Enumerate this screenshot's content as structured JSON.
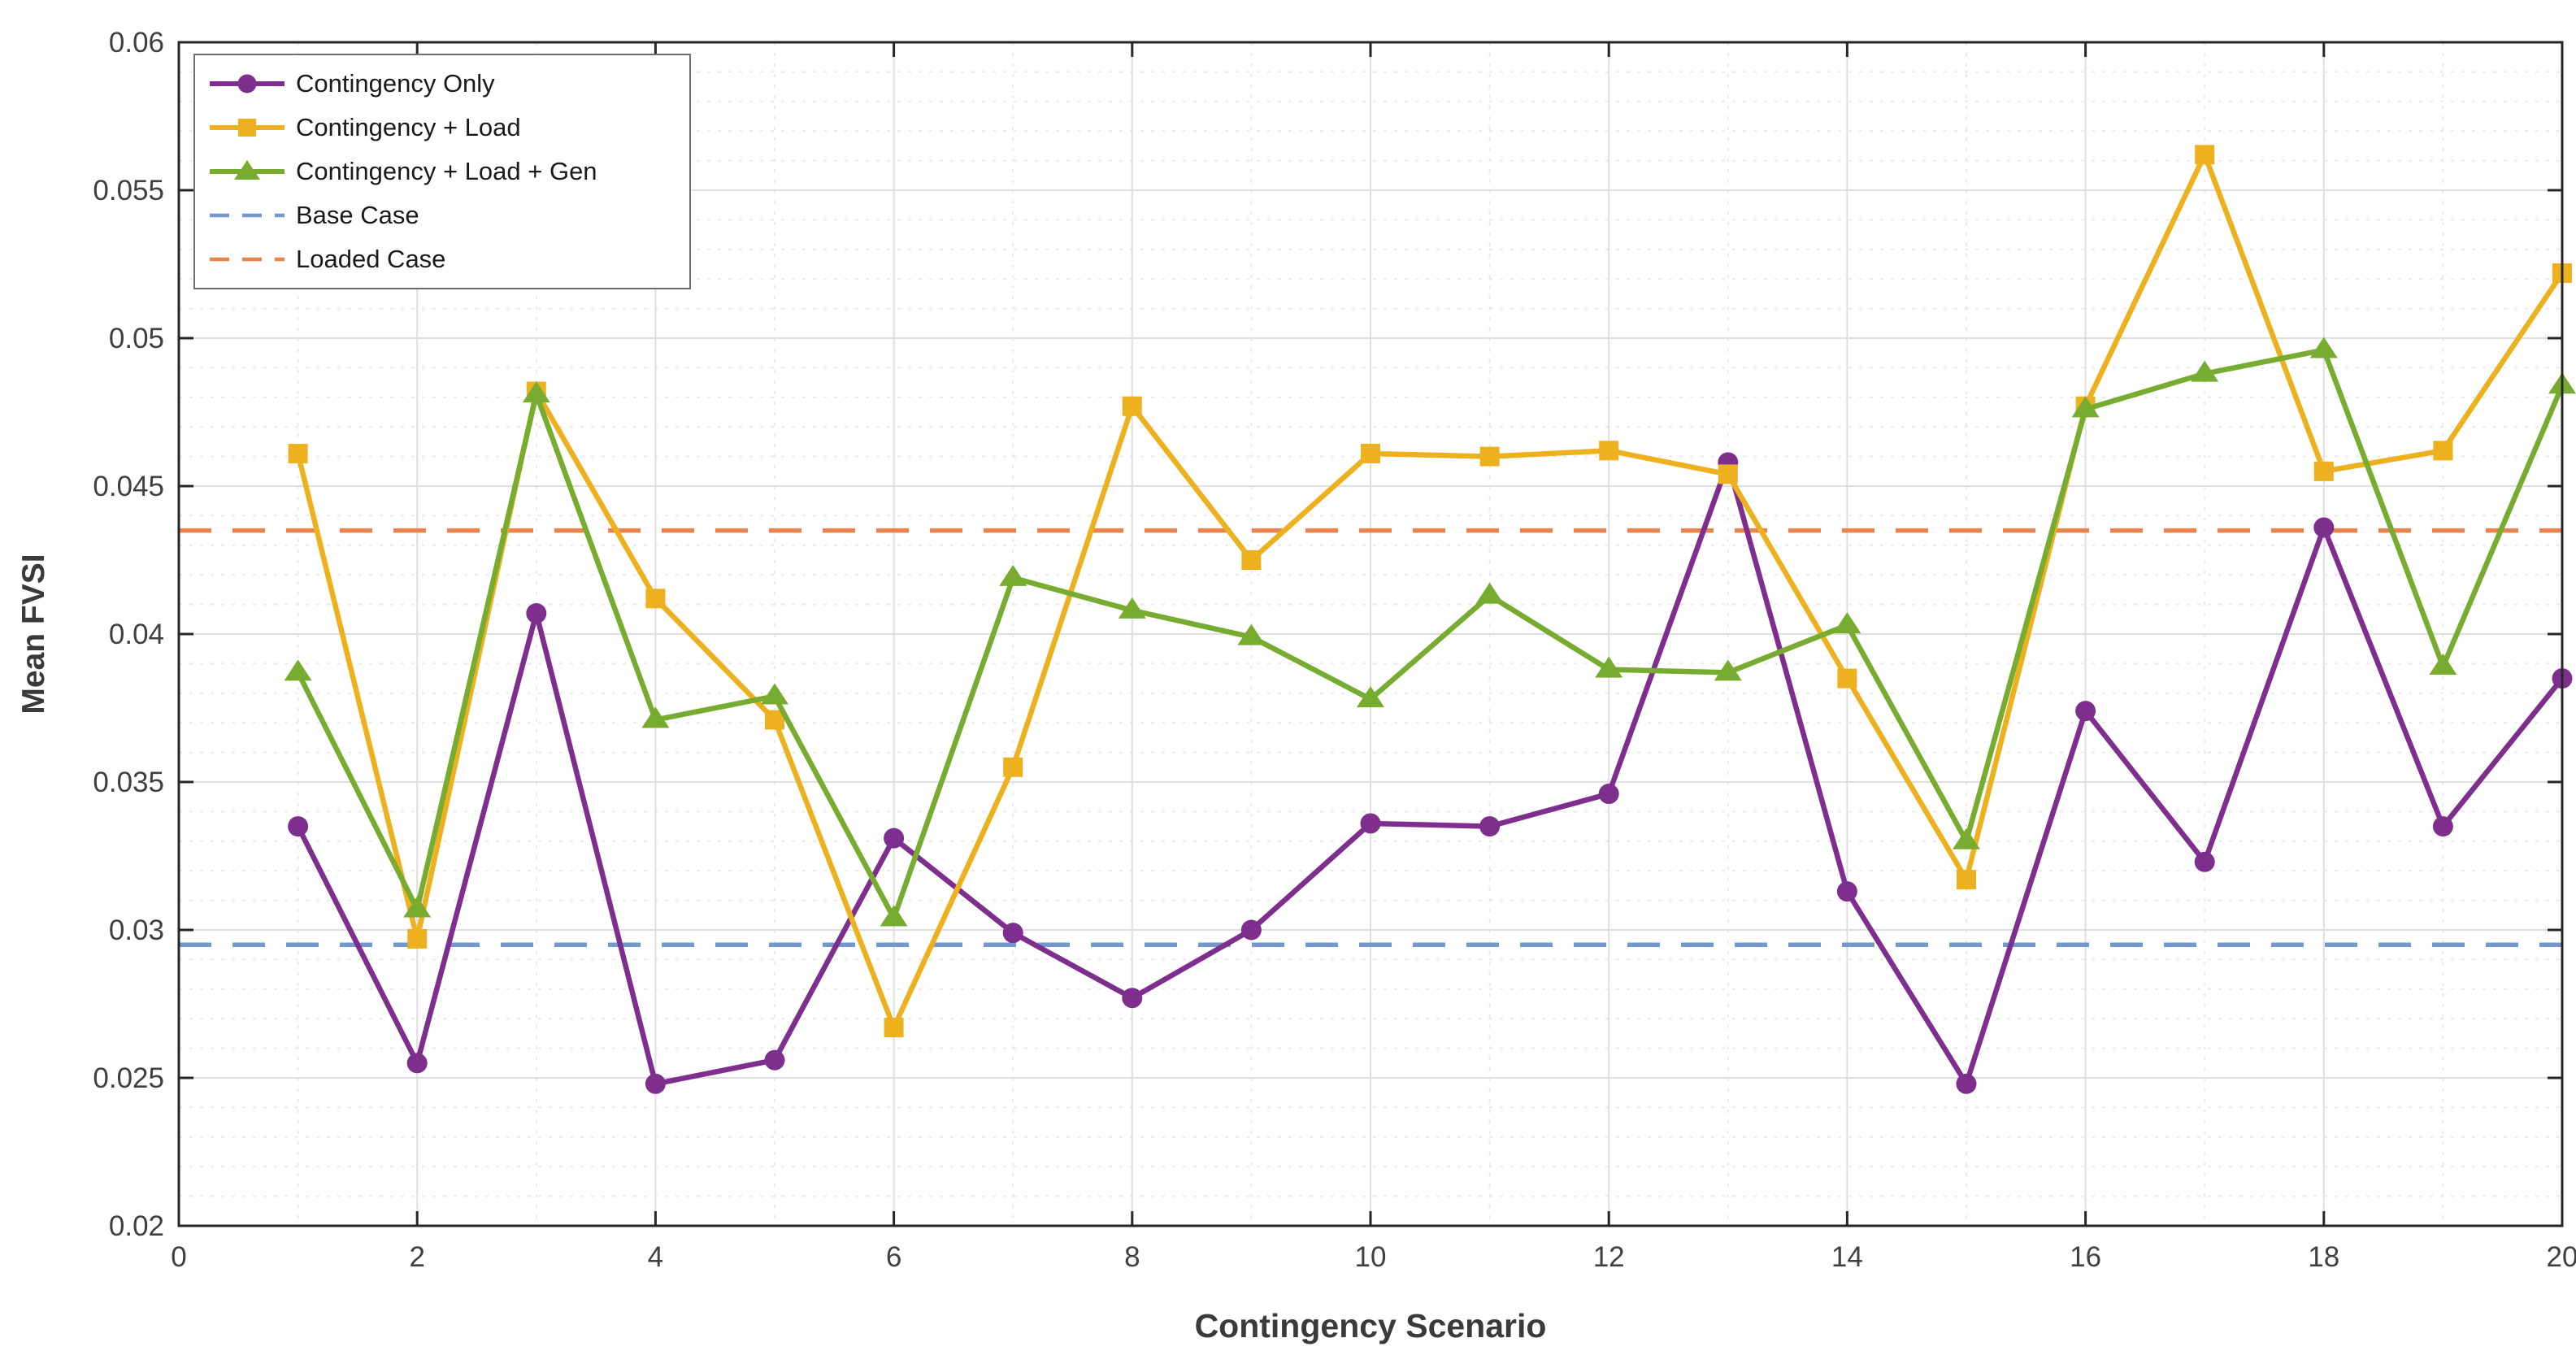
{
  "chart_data": {
    "type": "line",
    "title": "",
    "xlabel": "Contingency Scenario",
    "ylabel": "Mean FVSI",
    "xlim": [
      0,
      20
    ],
    "ylim": [
      0.02,
      0.06
    ],
    "grid": {
      "major": true,
      "minor": true
    },
    "legend_position": "top-left",
    "x": [
      1,
      2,
      3,
      4,
      5,
      6,
      7,
      8,
      9,
      10,
      11,
      12,
      13,
      14,
      15,
      16,
      17,
      18,
      19,
      20
    ],
    "series": [
      {
        "name": "Contingency Only",
        "color": "#7E2F8E",
        "marker": "circle",
        "line_style": "solid",
        "values": [
          0.0335,
          0.0255,
          0.0407,
          0.0248,
          0.0256,
          0.0331,
          0.0299,
          0.0277,
          0.03,
          0.0336,
          0.0335,
          0.0346,
          0.0458,
          0.0313,
          0.0248,
          0.0374,
          0.0323,
          0.0436,
          0.0335,
          0.0385
        ]
      },
      {
        "name": "Contingency + Load",
        "color": "#EDB120",
        "marker": "square",
        "line_style": "solid",
        "values": [
          0.0461,
          0.0297,
          0.0482,
          0.0412,
          0.0371,
          0.0267,
          0.0355,
          0.0477,
          0.0425,
          0.0461,
          0.046,
          0.0462,
          0.0454,
          0.0385,
          0.0317,
          0.0477,
          0.0562,
          0.0455,
          0.0462,
          0.0522
        ]
      },
      {
        "name": "Contingency + Load + Gen",
        "color": "#77AC30",
        "marker": "triangle",
        "line_style": "solid",
        "values": [
          0.0387,
          0.0307,
          0.0481,
          0.0371,
          0.0379,
          0.0304,
          0.0419,
          0.0408,
          0.0399,
          0.0378,
          0.0413,
          0.0388,
          0.0387,
          0.0403,
          0.033,
          0.0476,
          0.0488,
          0.0496,
          0.0389,
          0.0484
        ]
      }
    ],
    "reference_lines": [
      {
        "name": "Base Case",
        "value": 0.0295,
        "color": "#7598CC",
        "line_style": "dashed"
      },
      {
        "name": "Loaded Case",
        "value": 0.0435,
        "color": "#E8854F",
        "line_style": "dashed"
      }
    ],
    "xticks": {
      "values": [
        0,
        2,
        4,
        6,
        8,
        10,
        12,
        14,
        16,
        18,
        20
      ],
      "labels": [
        "0",
        "2",
        "4",
        "6",
        "8",
        "10",
        "12",
        "14",
        "16",
        "18",
        "20"
      ]
    },
    "yticks": {
      "values": [
        0.02,
        0.025,
        0.03,
        0.035,
        0.04,
        0.045,
        0.05,
        0.055,
        0.06
      ],
      "labels": [
        "0.02",
        "0.025",
        "0.03",
        "0.035",
        "0.04",
        "0.045",
        "0.05",
        "0.055",
        "0.06"
      ]
    }
  },
  "style_colors": {
    "frame": "#262626",
    "tick_label": "#404040",
    "axis_label": "#3a3a3a",
    "grid_major": "#dfdfdf",
    "grid_minor": "#e9e9e9",
    "background": "#ffffff"
  }
}
